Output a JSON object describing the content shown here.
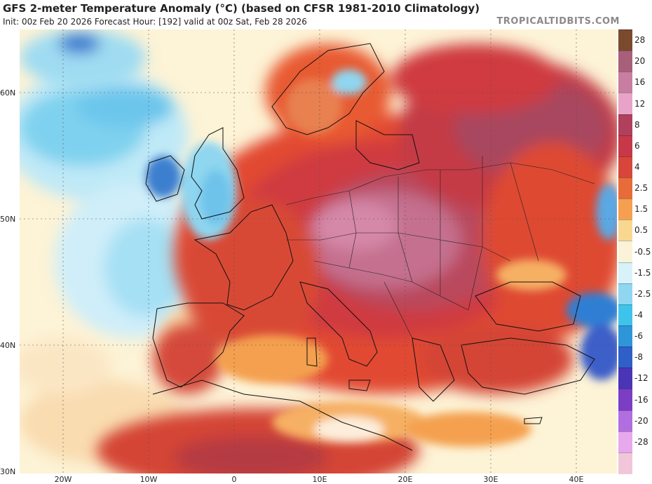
{
  "header": {
    "title": "GFS 2-meter Temperature Anomaly (°C) (based on CFSR 1981-2010 Climatology)",
    "subtitle": "Init: 00z Feb 20 2026   Forecast Hour: [192]   valid at 00z Sat, Feb 28 2026",
    "brand": "TROPICALTIDBITS.COM"
  },
  "map": {
    "lat_labels": [
      "60N",
      "50N",
      "40N",
      "30N"
    ],
    "lon_labels": [
      "20W",
      "10W",
      "0",
      "10E",
      "20E",
      "30E",
      "40E"
    ]
  },
  "colorbar": {
    "labels": [
      "28",
      "20",
      "16",
      "12",
      "8",
      "6",
      "4",
      "2.5",
      "1.5",
      "0.5",
      "-0.5",
      "-1.5",
      "-2.5",
      "-4",
      "-6",
      "-8",
      "-12",
      "-16",
      "-20",
      "-28"
    ],
    "colors": [
      "#7b4a2e",
      "#a8607a",
      "#c77ea0",
      "#e7a4c8",
      "#b0405c",
      "#c73848",
      "#d8453a",
      "#e86b3a",
      "#f4a050",
      "#f8d890",
      "#fbf3d8",
      "#d8f2fa",
      "#8fd6f0",
      "#3ec4ea",
      "#2f95d9",
      "#2f5fc8",
      "#4a35b6",
      "#7b3dc4",
      "#b16ee0",
      "#e7a8ee",
      "#f2c6d9"
    ]
  }
}
